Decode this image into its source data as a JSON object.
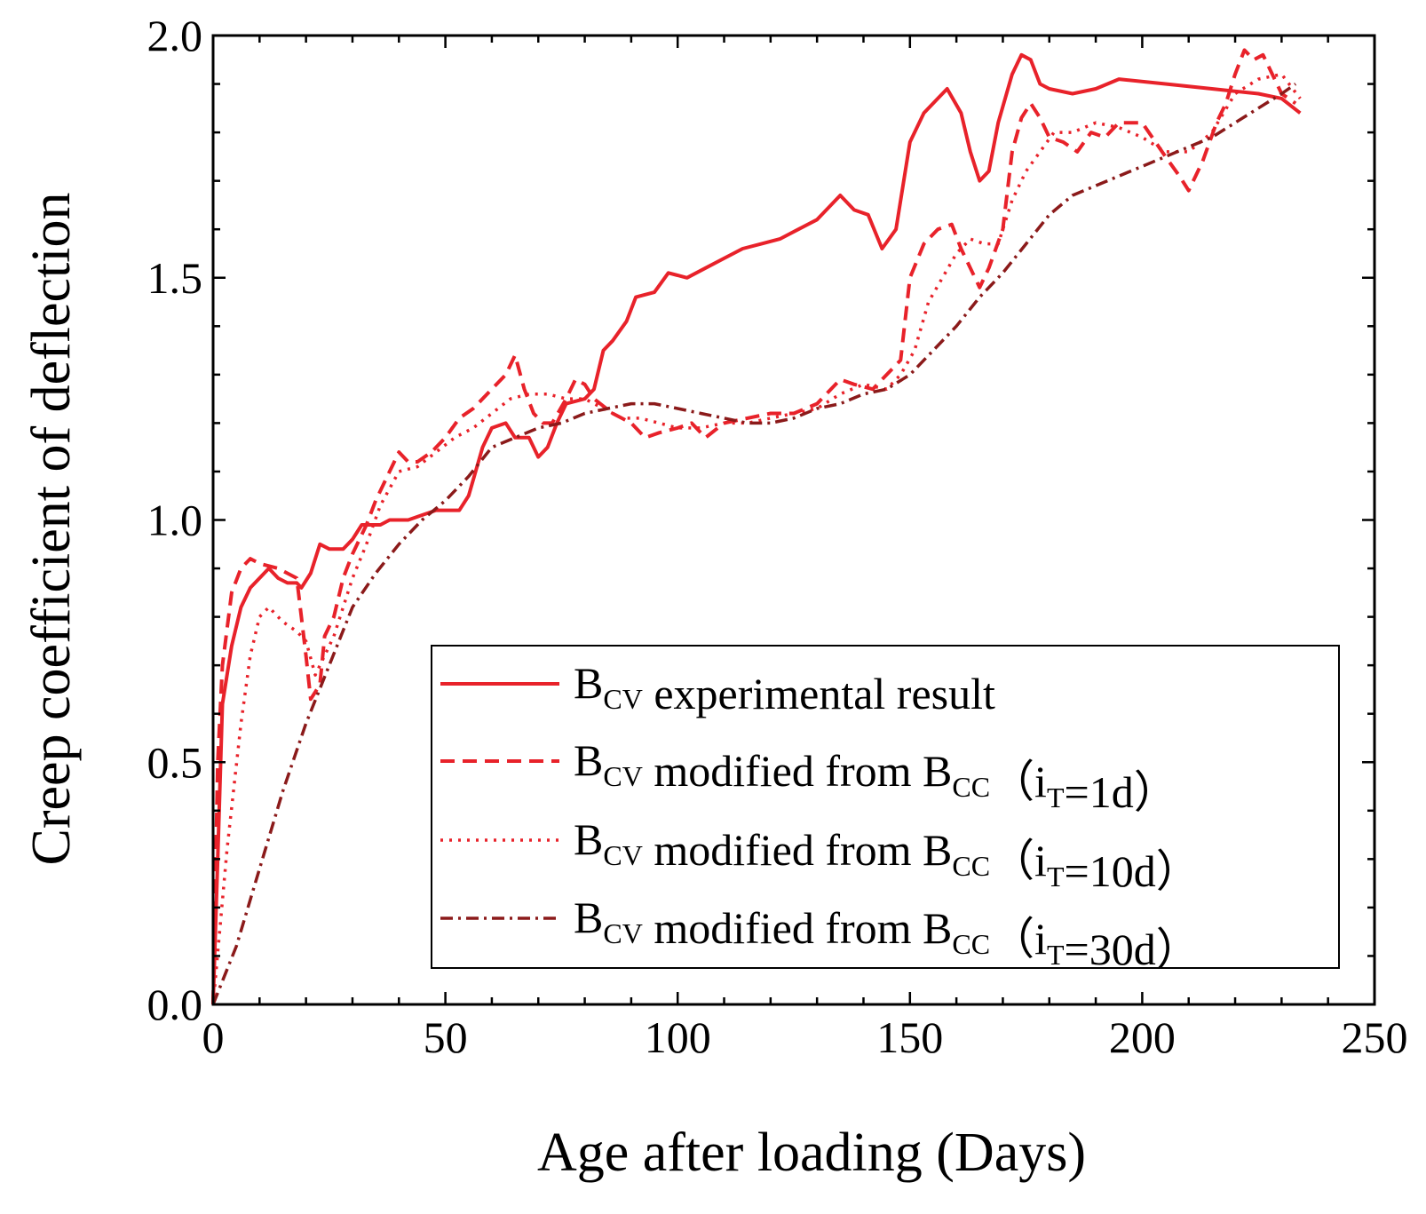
{
  "chart_data": {
    "type": "line",
    "xlabel": "Age after loading (Days)",
    "ylabel": "Creep coefficient of deflection",
    "xlim": [
      0,
      250
    ],
    "ylim": [
      0,
      2.0
    ],
    "xticks": [
      0,
      50,
      100,
      150,
      200,
      250
    ],
    "xtick_labels": [
      "0",
      "50",
      "100",
      "150",
      "200",
      "250"
    ],
    "yticks": [
      0,
      0.5,
      1.0,
      1.5,
      2.0
    ],
    "ytick_labels": [
      "0.0",
      "0.5",
      "1.0",
      "1.5",
      "2.0"
    ],
    "grid": false,
    "legend_position": "bottom-right",
    "series": [
      {
        "name": "B_CV experimental result",
        "legend": {
          "main": "B",
          "sub1": "CV",
          "text": " experimental result",
          "sub2": "",
          "tail": ""
        },
        "color": "#e8222a",
        "style": "solid",
        "points": [
          [
            0,
            0
          ],
          [
            1,
            0.3
          ],
          [
            2,
            0.62
          ],
          [
            4,
            0.74
          ],
          [
            6,
            0.82
          ],
          [
            8,
            0.86
          ],
          [
            10,
            0.88
          ],
          [
            12,
            0.9
          ],
          [
            14,
            0.88
          ],
          [
            16,
            0.87
          ],
          [
            18,
            0.87
          ],
          [
            19,
            0.86
          ],
          [
            21,
            0.89
          ],
          [
            23,
            0.95
          ],
          [
            25,
            0.94
          ],
          [
            28,
            0.94
          ],
          [
            30,
            0.96
          ],
          [
            32,
            0.99
          ],
          [
            36,
            0.99
          ],
          [
            38,
            1.0
          ],
          [
            42,
            1.0
          ],
          [
            45,
            1.01
          ],
          [
            48,
            1.02
          ],
          [
            53,
            1.02
          ],
          [
            55,
            1.05
          ],
          [
            58,
            1.15
          ],
          [
            60,
            1.19
          ],
          [
            63,
            1.2
          ],
          [
            65,
            1.17
          ],
          [
            68,
            1.17
          ],
          [
            70,
            1.13
          ],
          [
            72,
            1.15
          ],
          [
            74,
            1.2
          ],
          [
            76,
            1.24
          ],
          [
            80,
            1.25
          ],
          [
            82,
            1.27
          ],
          [
            84,
            1.35
          ],
          [
            86,
            1.37
          ],
          [
            89,
            1.41
          ],
          [
            91,
            1.46
          ],
          [
            95,
            1.47
          ],
          [
            98,
            1.51
          ],
          [
            102,
            1.5
          ],
          [
            106,
            1.52
          ],
          [
            110,
            1.54
          ],
          [
            114,
            1.56
          ],
          [
            118,
            1.57
          ],
          [
            122,
            1.58
          ],
          [
            126,
            1.6
          ],
          [
            130,
            1.62
          ],
          [
            133,
            1.65
          ],
          [
            135,
            1.67
          ],
          [
            138,
            1.64
          ],
          [
            141,
            1.63
          ],
          [
            144,
            1.56
          ],
          [
            147,
            1.6
          ],
          [
            150,
            1.78
          ],
          [
            153,
            1.84
          ],
          [
            156,
            1.87
          ],
          [
            158,
            1.89
          ],
          [
            161,
            1.84
          ],
          [
            163,
            1.76
          ],
          [
            165,
            1.7
          ],
          [
            167,
            1.72
          ],
          [
            169,
            1.82
          ],
          [
            172,
            1.92
          ],
          [
            174,
            1.96
          ],
          [
            176,
            1.95
          ],
          [
            178,
            1.9
          ],
          [
            180,
            1.89
          ],
          [
            185,
            1.88
          ],
          [
            190,
            1.89
          ],
          [
            195,
            1.91
          ],
          [
            205,
            1.9
          ],
          [
            215,
            1.89
          ],
          [
            225,
            1.88
          ],
          [
            230,
            1.87
          ],
          [
            234,
            1.84
          ]
        ]
      },
      {
        "name": "B_CV modified from B_CC (i_T=1d)",
        "legend": {
          "main": "B",
          "sub1": "CV",
          "text": " modified from B",
          "sub2": "CC",
          "tail": "（i|T|=1d）"
        },
        "color": "#e8222a",
        "style": "dashed",
        "points": [
          [
            0,
            0
          ],
          [
            1,
            0.5
          ],
          [
            2,
            0.7
          ],
          [
            4,
            0.85
          ],
          [
            6,
            0.9
          ],
          [
            8,
            0.92
          ],
          [
            10,
            0.91
          ],
          [
            14,
            0.9
          ],
          [
            18,
            0.88
          ],
          [
            20,
            0.72
          ],
          [
            21,
            0.63
          ],
          [
            23,
            0.66
          ],
          [
            24,
            0.76
          ],
          [
            26,
            0.8
          ],
          [
            28,
            0.88
          ],
          [
            30,
            0.93
          ],
          [
            33,
            0.99
          ],
          [
            35,
            1.04
          ],
          [
            38,
            1.1
          ],
          [
            40,
            1.14
          ],
          [
            42,
            1.12
          ],
          [
            44,
            1.12
          ],
          [
            47,
            1.14
          ],
          [
            50,
            1.17
          ],
          [
            53,
            1.21
          ],
          [
            56,
            1.23
          ],
          [
            60,
            1.27
          ],
          [
            63,
            1.3
          ],
          [
            65,
            1.34
          ],
          [
            67,
            1.27
          ],
          [
            69,
            1.22
          ],
          [
            71,
            1.2
          ],
          [
            73,
            1.2
          ],
          [
            76,
            1.25
          ],
          [
            78,
            1.29
          ],
          [
            80,
            1.28
          ],
          [
            82,
            1.25
          ],
          [
            86,
            1.22
          ],
          [
            90,
            1.2
          ],
          [
            93,
            1.17
          ],
          [
            96,
            1.18
          ],
          [
            100,
            1.19
          ],
          [
            103,
            1.2
          ],
          [
            106,
            1.17
          ],
          [
            110,
            1.2
          ],
          [
            115,
            1.21
          ],
          [
            120,
            1.22
          ],
          [
            125,
            1.22
          ],
          [
            130,
            1.24
          ],
          [
            135,
            1.29
          ],
          [
            138,
            1.28
          ],
          [
            142,
            1.27
          ],
          [
            145,
            1.3
          ],
          [
            148,
            1.33
          ],
          [
            150,
            1.5
          ],
          [
            153,
            1.57
          ],
          [
            156,
            1.6
          ],
          [
            159,
            1.61
          ],
          [
            161,
            1.56
          ],
          [
            163,
            1.52
          ],
          [
            165,
            1.48
          ],
          [
            167,
            1.52
          ],
          [
            170,
            1.6
          ],
          [
            172,
            1.76
          ],
          [
            174,
            1.83
          ],
          [
            176,
            1.86
          ],
          [
            178,
            1.83
          ],
          [
            180,
            1.79
          ],
          [
            183,
            1.78
          ],
          [
            186,
            1.76
          ],
          [
            189,
            1.8
          ],
          [
            192,
            1.79
          ],
          [
            195,
            1.82
          ],
          [
            200,
            1.82
          ],
          [
            205,
            1.75
          ],
          [
            208,
            1.71
          ],
          [
            210,
            1.68
          ],
          [
            213,
            1.74
          ],
          [
            216,
            1.82
          ],
          [
            218,
            1.86
          ],
          [
            220,
            1.92
          ],
          [
            222,
            1.97
          ],
          [
            224,
            1.95
          ],
          [
            226,
            1.96
          ],
          [
            228,
            1.92
          ],
          [
            230,
            1.88
          ],
          [
            233,
            1.86
          ]
        ]
      },
      {
        "name": "B_CV modified from B_CC (i_T=10d)",
        "legend": {
          "main": "B",
          "sub1": "CV",
          "text": " modified from B",
          "sub2": "CC",
          "tail": "（i|T|=10d）"
        },
        "color": "#e8222a",
        "style": "dotted",
        "points": [
          [
            0,
            0
          ],
          [
            3,
            0.32
          ],
          [
            6,
            0.58
          ],
          [
            8,
            0.72
          ],
          [
            10,
            0.8
          ],
          [
            12,
            0.82
          ],
          [
            15,
            0.79
          ],
          [
            18,
            0.77
          ],
          [
            20,
            0.75
          ],
          [
            22,
            0.68
          ],
          [
            24,
            0.72
          ],
          [
            26,
            0.76
          ],
          [
            30,
            0.88
          ],
          [
            33,
            0.95
          ],
          [
            36,
            1.03
          ],
          [
            40,
            1.1
          ],
          [
            44,
            1.11
          ],
          [
            48,
            1.14
          ],
          [
            52,
            1.17
          ],
          [
            56,
            1.19
          ],
          [
            60,
            1.22
          ],
          [
            64,
            1.25
          ],
          [
            68,
            1.26
          ],
          [
            72,
            1.26
          ],
          [
            76,
            1.25
          ],
          [
            80,
            1.25
          ],
          [
            84,
            1.23
          ],
          [
            88,
            1.21
          ],
          [
            92,
            1.21
          ],
          [
            96,
            1.2
          ],
          [
            100,
            1.19
          ],
          [
            105,
            1.19
          ],
          [
            110,
            1.2
          ],
          [
            115,
            1.2
          ],
          [
            120,
            1.21
          ],
          [
            125,
            1.22
          ],
          [
            130,
            1.23
          ],
          [
            135,
            1.26
          ],
          [
            140,
            1.28
          ],
          [
            145,
            1.27
          ],
          [
            148,
            1.3
          ],
          [
            151,
            1.35
          ],
          [
            154,
            1.45
          ],
          [
            157,
            1.5
          ],
          [
            160,
            1.55
          ],
          [
            163,
            1.58
          ],
          [
            166,
            1.57
          ],
          [
            169,
            1.57
          ],
          [
            172,
            1.66
          ],
          [
            175,
            1.72
          ],
          [
            178,
            1.76
          ],
          [
            181,
            1.8
          ],
          [
            185,
            1.8
          ],
          [
            190,
            1.82
          ],
          [
            195,
            1.81
          ],
          [
            200,
            1.79
          ],
          [
            205,
            1.76
          ],
          [
            210,
            1.76
          ],
          [
            215,
            1.8
          ],
          [
            220,
            1.88
          ],
          [
            225,
            1.91
          ],
          [
            230,
            1.92
          ],
          [
            234,
            1.87
          ]
        ]
      },
      {
        "name": "B_CV modified from B_CC (i_T=30d)",
        "legend": {
          "main": "B",
          "sub1": "CV",
          "text": " modified from B",
          "sub2": "CC",
          "tail": "（i|T|=30d）"
        },
        "color": "#8b1a1a",
        "style": "dashdot",
        "points": [
          [
            0,
            0
          ],
          [
            5,
            0.12
          ],
          [
            10,
            0.28
          ],
          [
            15,
            0.44
          ],
          [
            20,
            0.58
          ],
          [
            25,
            0.7
          ],
          [
            30,
            0.82
          ],
          [
            35,
            0.89
          ],
          [
            40,
            0.95
          ],
          [
            45,
            1.0
          ],
          [
            50,
            1.04
          ],
          [
            55,
            1.09
          ],
          [
            60,
            1.15
          ],
          [
            65,
            1.17
          ],
          [
            70,
            1.19
          ],
          [
            75,
            1.2
          ],
          [
            80,
            1.22
          ],
          [
            85,
            1.23
          ],
          [
            90,
            1.24
          ],
          [
            95,
            1.24
          ],
          [
            100,
            1.23
          ],
          [
            105,
            1.22
          ],
          [
            110,
            1.21
          ],
          [
            115,
            1.2
          ],
          [
            120,
            1.2
          ],
          [
            125,
            1.21
          ],
          [
            130,
            1.23
          ],
          [
            135,
            1.24
          ],
          [
            140,
            1.26
          ],
          [
            145,
            1.27
          ],
          [
            150,
            1.3
          ],
          [
            155,
            1.35
          ],
          [
            160,
            1.4
          ],
          [
            165,
            1.46
          ],
          [
            170,
            1.51
          ],
          [
            175,
            1.57
          ],
          [
            180,
            1.63
          ],
          [
            185,
            1.67
          ],
          [
            190,
            1.69
          ],
          [
            195,
            1.71
          ],
          [
            200,
            1.73
          ],
          [
            205,
            1.75
          ],
          [
            210,
            1.77
          ],
          [
            215,
            1.79
          ],
          [
            220,
            1.82
          ],
          [
            225,
            1.85
          ],
          [
            230,
            1.88
          ],
          [
            233,
            1.9
          ]
        ]
      }
    ]
  }
}
